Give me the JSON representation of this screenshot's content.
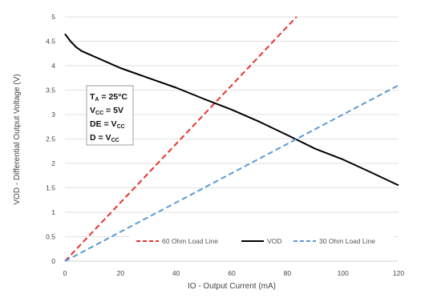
{
  "chart_data": {
    "type": "line",
    "xlabel": "IO - Output Current (mA)",
    "ylabel": "VOD - Differential Output Voltage (V)",
    "xlim": [
      0,
      120
    ],
    "ylim": [
      0,
      5
    ],
    "xticks": [
      0,
      20,
      40,
      60,
      80,
      100,
      120
    ],
    "yticks": [
      0,
      0.5,
      1,
      1.5,
      2,
      2.5,
      3,
      3.5,
      4,
      4.5,
      5
    ],
    "x_tick_labels": [
      "0",
      "20",
      "40",
      "60",
      "80",
      "100",
      "120"
    ],
    "y_tick_labels": [
      "0",
      "0.5",
      "1",
      "1.5",
      "2",
      "2.5",
      "3",
      "3.5",
      "4",
      "4.5",
      "5"
    ],
    "grid": "horizontal",
    "legend_position": "bottom-right",
    "series": [
      {
        "name": "60 Ohm Load Line",
        "color": "#e8312f",
        "dash": "dashed",
        "x": [
          0,
          83.3
        ],
        "y": [
          0,
          5
        ]
      },
      {
        "name": "VOD",
        "color": "#000000",
        "dash": "solid",
        "x": [
          0,
          2,
          4,
          6,
          10,
          20,
          30,
          40,
          50,
          60,
          70,
          80,
          90,
          100,
          110,
          120
        ],
        "y": [
          4.65,
          4.5,
          4.38,
          4.3,
          4.2,
          3.95,
          3.75,
          3.55,
          3.32,
          3.1,
          2.85,
          2.58,
          2.3,
          2.08,
          1.82,
          1.55
        ]
      },
      {
        "name": "30 Ohm Load Line",
        "color": "#5b9bd5",
        "dash": "dashed",
        "x": [
          0,
          120
        ],
        "y": [
          0,
          3.6
        ]
      }
    ],
    "annotation": {
      "ta_main": "T",
      "ta_sub": "A",
      "ta_rest": " = 25°C",
      "vcc_main": "V",
      "vcc_sub": "CC",
      "vcc_rest": " = 5V",
      "de_main": "DE =  V",
      "de_sub": "CC",
      "d_main": "D =  V",
      "d_sub": "CC"
    }
  }
}
